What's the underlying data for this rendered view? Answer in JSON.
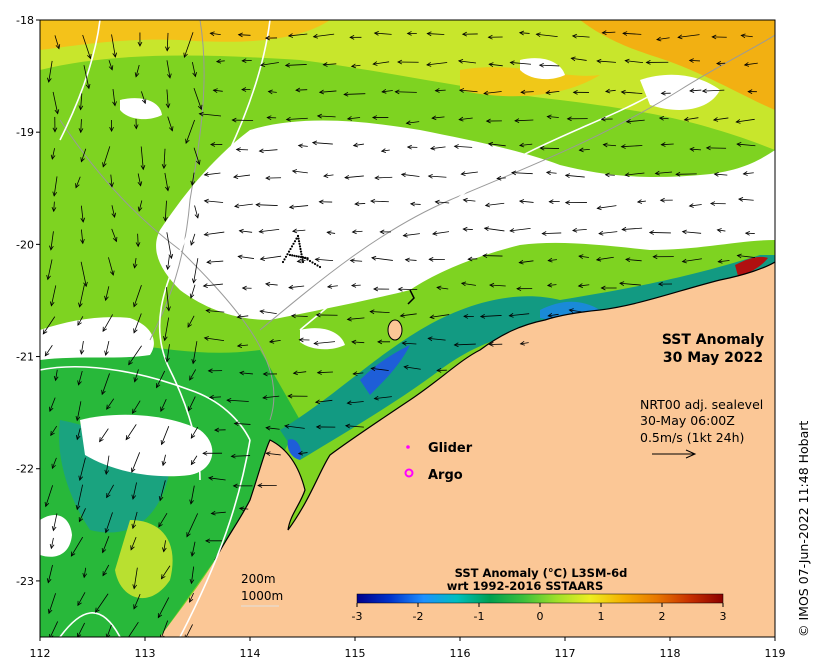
{
  "map": {
    "title_line1": "SST Anomaly",
    "title_line2": "30 May 2022",
    "x_ticks": [
      "112",
      "113",
      "114",
      "115",
      "116",
      "117",
      "118",
      "119"
    ],
    "y_ticks": [
      "-18",
      "-19",
      "-20",
      "-21",
      "-22",
      "-23"
    ],
    "lon_range": [
      112,
      119
    ],
    "lat_range": [
      -23.5,
      -18
    ],
    "land_color": "#fbc796",
    "no_data_color": "#ffffff"
  },
  "current_info": {
    "line1": "NRT00 adj. sealevel",
    "line2": "30-May 06:00Z",
    "line3": "0.5m/s (1kt 24h)"
  },
  "legend": {
    "glider_label": "Glider",
    "glider_color": "#ff00ff",
    "argo_label": "Argo",
    "argo_marker": "o",
    "argo_color": "#ff00ff"
  },
  "depth_labels": {
    "shallow": "200m",
    "deep": "1000m"
  },
  "colorbar": {
    "title_line1": "SST Anomaly (°C) L3SM-6d",
    "title_line2": "wrt 1992-2016 SSTAARS",
    "ticks": [
      "-3",
      "-2",
      "-1",
      "0",
      "1",
      "2",
      "3"
    ],
    "range": [
      -3,
      3
    ],
    "colors": [
      "#00008b",
      "#0033cc",
      "#1e90ff",
      "#00bfbf",
      "#00a050",
      "#3cc03c",
      "#9fe02a",
      "#eeee22",
      "#f4b000",
      "#e87800",
      "#c83000",
      "#8b0000"
    ]
  },
  "credit": "© IMOS 07-Jun-2022 11:48 Hobart"
}
